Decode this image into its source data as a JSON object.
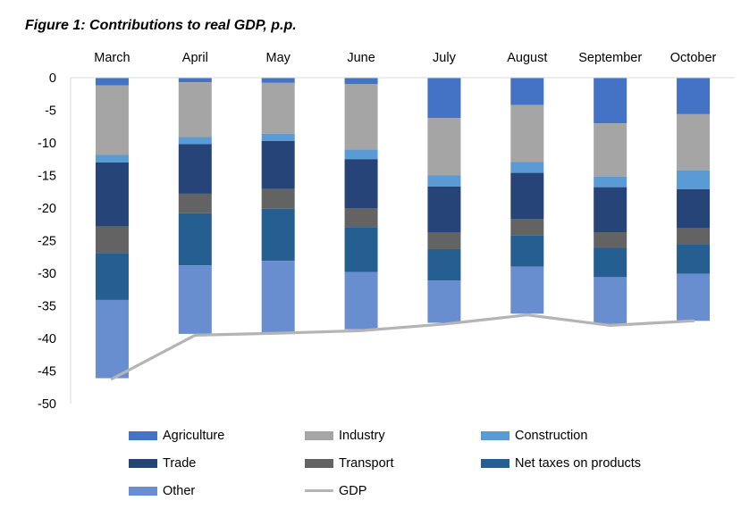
{
  "figure": {
    "title": "Figure 1: Contributions to real GDP, p.p."
  },
  "chart_data": {
    "type": "bar",
    "stacked": true,
    "title": "Figure 1: Contributions to real GDP, p.p.",
    "xlabel": "",
    "ylabel": "",
    "x_axis_position": "top",
    "ylim": [
      -50,
      0
    ],
    "yticks": [
      0,
      -5,
      -10,
      -15,
      -20,
      -25,
      -30,
      -35,
      -40,
      -45,
      -50
    ],
    "grid": false,
    "legend_position": "bottom",
    "categories": [
      "March",
      "April",
      "May",
      "June",
      "July",
      "August",
      "September",
      "October"
    ],
    "series": [
      {
        "name": "Agriculture",
        "kind": "bar",
        "color": "#4472C4",
        "values": [
          -1.2,
          -0.7,
          -0.8,
          -1.0,
          -6.2,
          -4.2,
          -7.0,
          -5.6
        ]
      },
      {
        "name": "Industry",
        "kind": "bar",
        "color": "#A5A5A5",
        "values": [
          -10.6,
          -8.4,
          -7.8,
          -10.0,
          -8.8,
          -8.7,
          -8.2,
          -8.6
        ]
      },
      {
        "name": "Construction",
        "kind": "bar",
        "color": "#5B9BD5",
        "values": [
          -1.2,
          -1.1,
          -1.1,
          -1.5,
          -1.7,
          -1.7,
          -1.6,
          -2.9
        ]
      },
      {
        "name": "Trade",
        "kind": "bar",
        "color": "#264478",
        "values": [
          -9.8,
          -7.6,
          -7.4,
          -7.5,
          -7.1,
          -7.1,
          -6.9,
          -6.0
        ]
      },
      {
        "name": "Transport",
        "kind": "bar",
        "color": "#636363",
        "values": [
          -4.1,
          -3.0,
          -3.0,
          -2.9,
          -2.5,
          -2.5,
          -2.4,
          -2.4
        ]
      },
      {
        "name": "Net taxes on products",
        "kind": "bar",
        "color": "#255E91",
        "values": [
          -7.2,
          -8.0,
          -8.0,
          -6.9,
          -4.8,
          -4.8,
          -4.5,
          -4.6
        ]
      },
      {
        "name": "Other",
        "kind": "bar",
        "color": "#698ED0",
        "values": [
          -12.0,
          -10.5,
          -11.0,
          -8.8,
          -6.5,
          -7.2,
          -7.2,
          -7.2
        ]
      },
      {
        "name": "GDP",
        "kind": "line",
        "color": "#B4B4B4",
        "values": [
          -46.2,
          -39.5,
          -39.2,
          -38.8,
          -37.8,
          -36.4,
          -38.0,
          -37.3
        ]
      }
    ]
  }
}
